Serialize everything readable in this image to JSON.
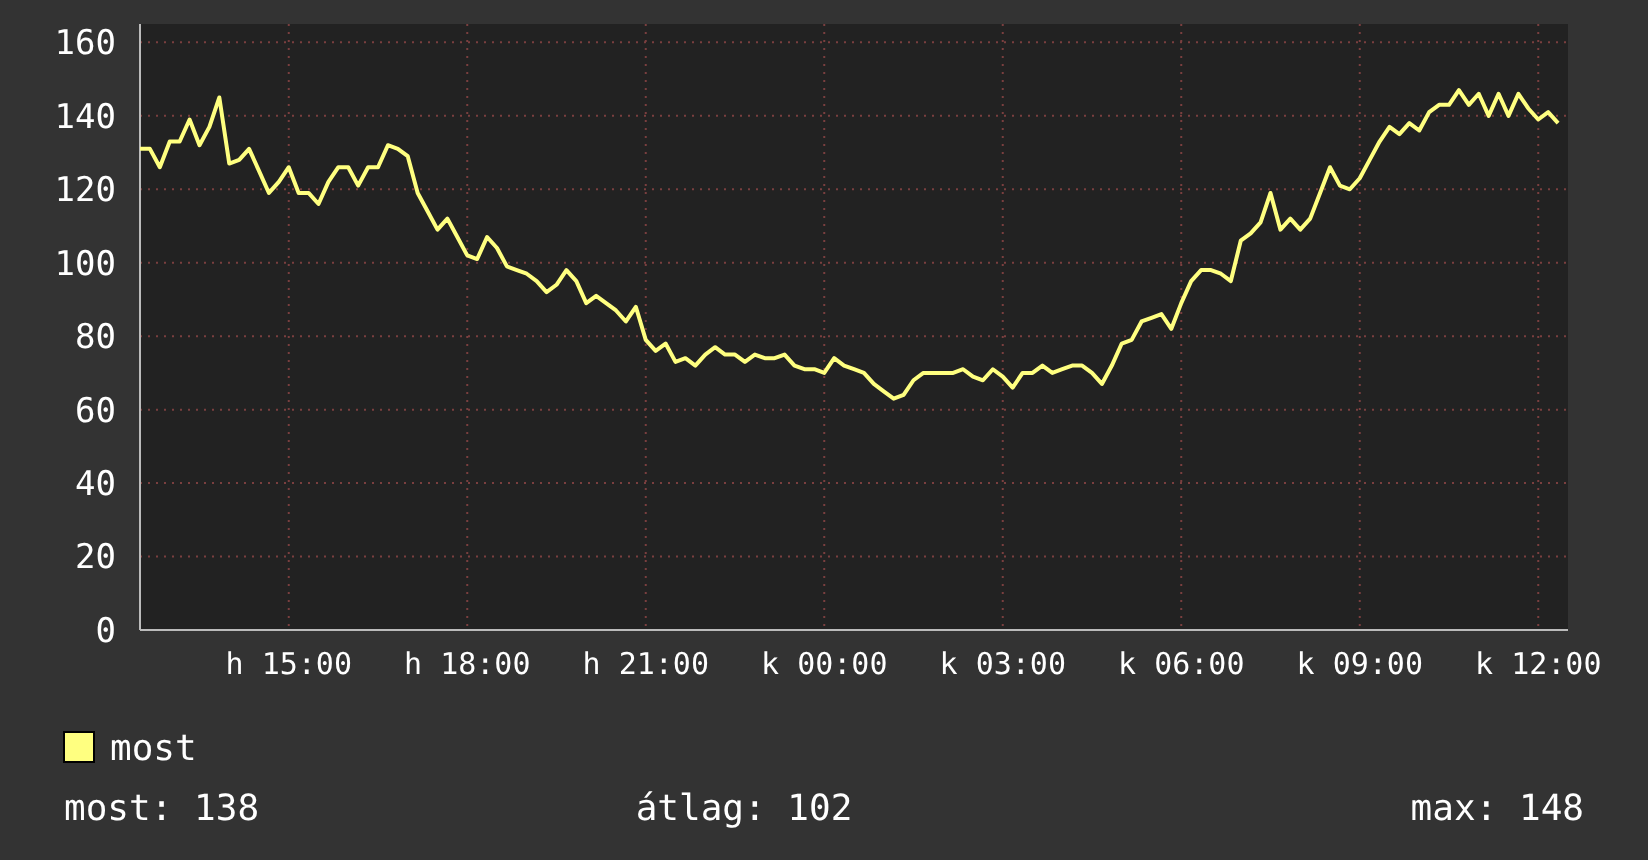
{
  "chart_data": {
    "type": "line",
    "categories": [
      null,
      null,
      null,
      null,
      null,
      null,
      null,
      null,
      null,
      null,
      null,
      null,
      null,
      null,
      null,
      "h 15:00",
      null,
      null,
      null,
      null,
      null,
      null,
      null,
      null,
      null,
      null,
      null,
      null,
      null,
      null,
      null,
      null,
      null,
      "h 18:00",
      null,
      null,
      null,
      null,
      null,
      null,
      null,
      null,
      null,
      null,
      null,
      null,
      null,
      null,
      null,
      null,
      null,
      "h 21:00",
      null,
      null,
      null,
      null,
      null,
      null,
      null,
      null,
      null,
      null,
      null,
      null,
      null,
      null,
      null,
      null,
      null,
      "k 00:00",
      null,
      null,
      null,
      null,
      null,
      null,
      null,
      null,
      null,
      null,
      null,
      null,
      null,
      null,
      null,
      null,
      null,
      "k 03:00",
      null,
      null,
      null,
      null,
      null,
      null,
      null,
      null,
      null,
      null,
      null,
      null,
      null,
      null,
      null,
      null,
      null,
      "k 06:00",
      null,
      null,
      null,
      null,
      null,
      null,
      null,
      null,
      null,
      null,
      null,
      null,
      null,
      null,
      null,
      null,
      null,
      "k 09:00",
      null,
      null,
      null,
      null,
      null,
      null,
      null,
      null,
      null,
      null,
      null,
      null,
      null,
      null,
      null,
      null,
      null,
      "k 12:00",
      null,
      null,
      null
    ],
    "series": [
      {
        "name": "most",
        "color": "#ffff80",
        "values": [
          131,
          131,
          126,
          133,
          133,
          139,
          132,
          137,
          145,
          127,
          128,
          131,
          125,
          119,
          122,
          126,
          119,
          119,
          116,
          122,
          126,
          126,
          121,
          126,
          126,
          132,
          131,
          129,
          119,
          114,
          109,
          112,
          107,
          102,
          101,
          107,
          104,
          99,
          98,
          97,
          95,
          92,
          94,
          98,
          95,
          89,
          91,
          89,
          87,
          84,
          88,
          79,
          76,
          78,
          73,
          74,
          72,
          75,
          77,
          75,
          75,
          73,
          75,
          74,
          74,
          75,
          72,
          71,
          71,
          70,
          74,
          72,
          71,
          70,
          67,
          65,
          63,
          64,
          68,
          70,
          70,
          70,
          70,
          71,
          69,
          68,
          71,
          69,
          66,
          70,
          70,
          72,
          70,
          71,
          72,
          72,
          70,
          67,
          72,
          78,
          79,
          84,
          85,
          86,
          82,
          89,
          95,
          98,
          98,
          97,
          95,
          106,
          108,
          111,
          119,
          109,
          112,
          109,
          112,
          119,
          126,
          121,
          120,
          123,
          128,
          133,
          137,
          135,
          138,
          136,
          141,
          143,
          143,
          147,
          143,
          146,
          140,
          146,
          140,
          146,
          142,
          139,
          141,
          138,
          null
        ]
      }
    ],
    "ylim": [
      0,
      165
    ],
    "yticks": [
      0,
      20,
      40,
      60,
      80,
      100,
      120,
      140,
      160
    ],
    "grid": true,
    "legend": "bottom",
    "annotations": [
      "most: 138",
      "átlag: 102",
      "max: 148"
    ]
  }
}
